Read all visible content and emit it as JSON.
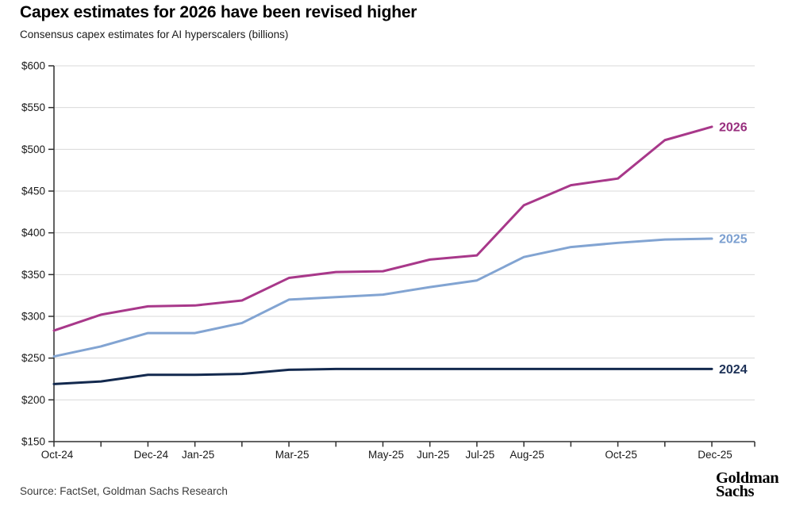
{
  "header": {
    "title": "Capex estimates for 2026 have been revised higher",
    "subtitle": "Consensus capex estimates for AI hyperscalers (billions)"
  },
  "footer": {
    "source": "Source: FactSet, Goldman Sachs Research",
    "logo_line1": "Goldman",
    "logo_line2": "Sachs"
  },
  "chart_data": {
    "type": "line",
    "title": "Capex estimates for 2026 have been revised higher",
    "subtitle": "Consensus capex estimates for AI hyperscalers (billions)",
    "x": [
      "Oct-24",
      "Nov-24",
      "Dec-24",
      "Jan-25",
      "Feb-25",
      "Mar-25",
      "Apr-25",
      "May-25",
      "Jun-25",
      "Jul-25",
      "Aug-25",
      "Sep-25",
      "Oct-25",
      "Nov-25",
      "Dec-25"
    ],
    "x_axis_labels_shown": [
      "Oct-24",
      "",
      "Dec-24",
      "Jan-25",
      "",
      "Mar-25",
      "",
      "May-25",
      "Jun-25",
      "Jul-25",
      "Aug-25",
      "",
      "Oct-25",
      "",
      "Dec-25"
    ],
    "y_ticks": [
      150,
      200,
      250,
      300,
      350,
      400,
      450,
      500,
      550,
      600
    ],
    "y_tick_prefix": "$",
    "ylim": [
      150,
      600
    ],
    "grid": "horizontal",
    "legend_position": "line-end-labels",
    "series": [
      {
        "name": "2026",
        "color": "#a8388a",
        "label_color": "#982f7e",
        "values": [
          283,
          302,
          312,
          313,
          319,
          346,
          353,
          354,
          368,
          373,
          433,
          457,
          465,
          511,
          527
        ]
      },
      {
        "name": "2025",
        "color": "#82a4d2",
        "label_color": "#7b9fd0",
        "values": [
          252,
          264,
          280,
          280,
          292,
          320,
          323,
          326,
          335,
          343,
          371,
          383,
          388,
          392,
          393
        ]
      },
      {
        "name": "2024",
        "color": "#13294e",
        "label_color": "#1d3157",
        "values": [
          219,
          222,
          230,
          230,
          231,
          236,
          237,
          237,
          237,
          237,
          237,
          237,
          237,
          237,
          237
        ]
      }
    ],
    "axis_color": "#2f2f2f",
    "gridline_color": "#dadada"
  }
}
